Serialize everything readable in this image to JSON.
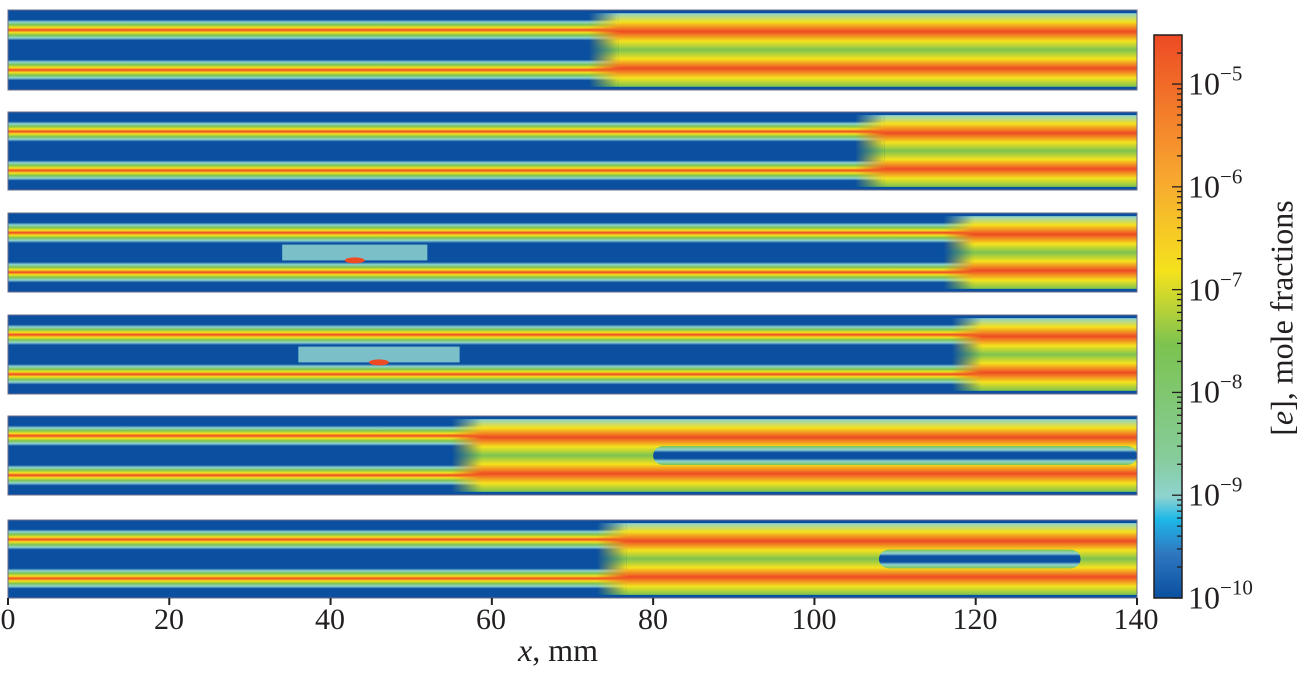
{
  "chart_data": {
    "type": "heatmap",
    "panels": 6,
    "xlim": [
      0,
      140
    ],
    "x_ticks": [
      "0",
      "20",
      "40",
      "60",
      "80",
      "100",
      "120",
      "140"
    ],
    "xlabel_var": "x",
    "xlabel_unit": ", mm",
    "colorbar": {
      "label_var": "e",
      "label_rest": ", mole fractions",
      "scale": "log",
      "range": [
        1e-10,
        3e-05
      ],
      "colormap": "jet",
      "ticks": [
        {
          "base": "10",
          "exp": "−5",
          "value": 1e-05
        },
        {
          "base": "10",
          "exp": "−6",
          "value": 1e-06
        },
        {
          "base": "10",
          "exp": "−7",
          "value": 1e-07
        },
        {
          "base": "10",
          "exp": "−8",
          "value": 1e-08
        },
        {
          "base": "10",
          "exp": "−9",
          "value": 1e-09
        },
        {
          "base": "10",
          "exp": "−10",
          "value": 1e-10
        }
      ]
    },
    "panel_features": [
      {
        "core_mixing_onset_mm": 72,
        "local_zones_mm": [],
        "relaminarized_core_mm": []
      },
      {
        "core_mixing_onset_mm": 105,
        "local_zones_mm": [],
        "relaminarized_core_mm": []
      },
      {
        "core_mixing_onset_mm": 116,
        "local_zones_mm": [
          [
            34,
            52
          ]
        ],
        "relaminarized_core_mm": []
      },
      {
        "core_mixing_onset_mm": 117,
        "local_zones_mm": [
          [
            36,
            56
          ]
        ],
        "relaminarized_core_mm": []
      },
      {
        "core_mixing_onset_mm": 55,
        "local_zones_mm": [],
        "relaminarized_core_mm": [
          [
            80,
            140
          ]
        ]
      },
      {
        "core_mixing_onset_mm": 73,
        "local_zones_mm": [],
        "relaminarized_core_mm": [
          [
            108,
            133
          ]
        ]
      }
    ],
    "colors": {
      "low": "#0a4fa0",
      "mid_low": "#8fd3d0",
      "mid": "#7cc350",
      "mid_high": "#f5e21d",
      "high": "#ee4a24"
    }
  }
}
